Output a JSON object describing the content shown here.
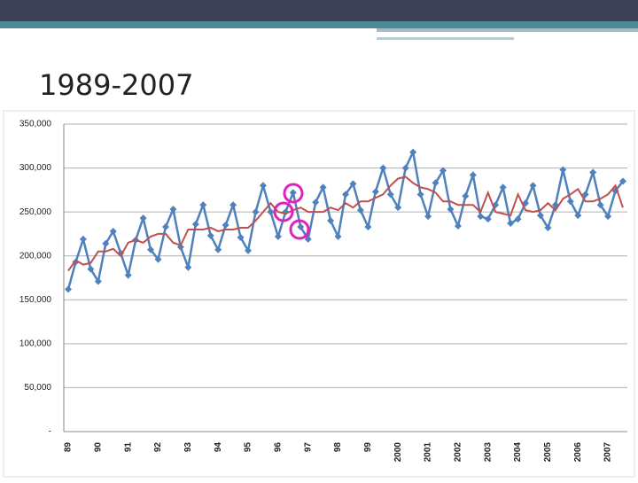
{
  "title": "1989-2007",
  "chart_data": {
    "type": "line",
    "categories": [
      "89",
      null,
      null,
      null,
      "90",
      null,
      null,
      null,
      "91",
      null,
      null,
      null,
      "92",
      null,
      null,
      null,
      "93",
      null,
      null,
      null,
      "94",
      null,
      null,
      null,
      "95",
      null,
      null,
      null,
      "96",
      null,
      null,
      null,
      "97",
      null,
      null,
      null,
      "98",
      null,
      null,
      null,
      "99",
      null,
      null,
      null,
      "2000",
      null,
      null,
      null,
      "2001",
      null,
      null,
      null,
      "2002",
      null,
      null,
      null,
      "2003",
      null,
      null,
      null,
      "2004",
      null,
      null,
      null,
      "2005",
      null,
      null,
      null,
      "2006",
      null,
      null,
      null,
      "2007",
      null,
      null
    ],
    "series": [
      {
        "color": "#4f81bd",
        "marker": "diamond",
        "values": [
          162000,
          193000,
          219000,
          185000,
          171000,
          214000,
          228000,
          203000,
          178000,
          218000,
          243000,
          207000,
          196000,
          233000,
          253000,
          210000,
          187000,
          236000,
          258000,
          223000,
          207000,
          235000,
          258000,
          221000,
          206000,
          250000,
          280000,
          250000,
          222000,
          250000,
          272000,
          233000,
          219000,
          261000,
          278000,
          240000,
          222000,
          270000,
          282000,
          252000,
          233000,
          273000,
          300000,
          270000,
          255000,
          300000,
          318000,
          270000,
          245000,
          283000,
          297000,
          253000,
          234000,
          268000,
          292000,
          245000,
          242000,
          258000,
          278000,
          237000,
          242000,
          260000,
          280000,
          246000,
          232000,
          258000,
          298000,
          262000,
          246000,
          270000,
          295000,
          258000,
          245000,
          274000,
          285000
        ]
      },
      {
        "color": "#c0504d",
        "values": [
          183000,
          195000,
          190000,
          192000,
          205000,
          205000,
          208000,
          200000,
          215000,
          218000,
          215000,
          222000,
          225000,
          225000,
          215000,
          212000,
          230000,
          230000,
          230000,
          232000,
          228000,
          230000,
          230000,
          232000,
          232000,
          240000,
          250000,
          260000,
          250000,
          248000,
          252000,
          255000,
          250000,
          250000,
          250000,
          255000,
          252000,
          260000,
          255000,
          262000,
          262000,
          266000,
          270000,
          280000,
          288000,
          290000,
          283000,
          278000,
          276000,
          272000,
          262000,
          262000,
          258000,
          258000,
          258000,
          250000,
          272000,
          250000,
          248000,
          246000,
          270000,
          252000,
          250000,
          252000,
          260000,
          252000,
          265000,
          270000,
          276000,
          262000,
          262000,
          265000,
          270000,
          280000,
          255000
        ]
      }
    ],
    "ylim": [
      0,
      350000
    ],
    "yticks": [
      {
        "value": 0,
        "label": "-"
      },
      {
        "value": 50000,
        "label": "50,000"
      },
      {
        "value": 100000,
        "label": "100,000"
      },
      {
        "value": 150000,
        "label": "150,000"
      },
      {
        "value": 200000,
        "label": "200,000"
      },
      {
        "value": 250000,
        "label": "250,000"
      },
      {
        "value": 300000,
        "label": "300,000"
      },
      {
        "value": 350000,
        "label": "350,000"
      }
    ],
    "grid": true
  }
}
